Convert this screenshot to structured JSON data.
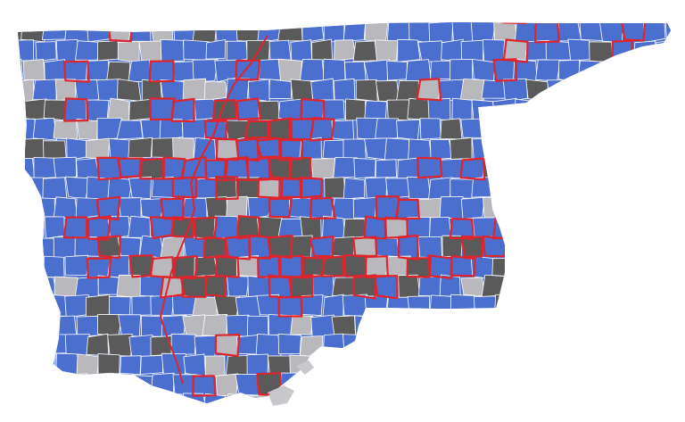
{
  "map": {
    "legend": [],
    "colors": {
      "blue": "#4b6fcf",
      "dark_gray": "#5a5a5a",
      "light_gray": "#b9b9bd",
      "highlight_outline": "#e0242b",
      "background": "#ffffff",
      "county_border": "#ffffff"
    },
    "category_names": [
      "blue",
      "dark_gray",
      "light_gray"
    ]
  }
}
